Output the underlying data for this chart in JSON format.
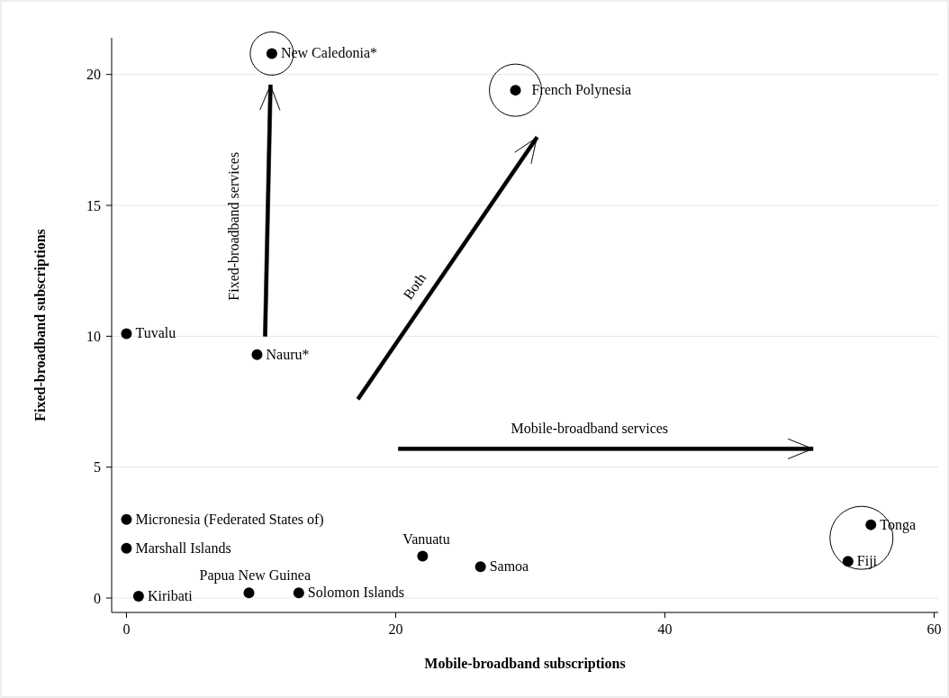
{
  "chart_data": {
    "type": "scatter",
    "xlabel": "Mobile-broadband subscriptions",
    "ylabel": "Fixed-broadband subscriptions",
    "x": [
      10.8,
      28.9,
      0,
      9.7,
      0,
      0,
      22.0,
      26.3,
      55.3,
      53.6,
      9.1,
      12.8,
      0.9
    ],
    "values": [
      20.8,
      19.4,
      10.1,
      9.3,
      3.0,
      1.9,
      1.6,
      1.2,
      2.8,
      1.4,
      0.2,
      0.2,
      0.07
    ],
    "color": "#000000",
    "marker": "circle",
    "grid": "y",
    "xlim": [
      -1.1,
      60.3
    ],
    "xticks": [
      0,
      20,
      40,
      60
    ],
    "ylim": [
      -0.55,
      21.4
    ],
    "yticks": [
      0,
      5,
      10,
      15,
      20
    ],
    "annotations": [
      {
        "text": "New Caledonia*",
        "x": 10.8,
        "y": 20.8
      },
      {
        "text": "French Polynesia",
        "x": 28.9,
        "y": 19.4
      },
      {
        "text": "Tuvalu",
        "x": 0,
        "y": 10.1
      },
      {
        "text": "Nauru*",
        "x": 9.7,
        "y": 9.3
      },
      {
        "text": "Micronesia (Federated States of)",
        "x": 0,
        "y": 3.0
      },
      {
        "text": "Marshall Islands",
        "x": 0,
        "y": 1.9
      },
      {
        "text": "Vanuatu",
        "x": 22.0,
        "y": 1.6
      },
      {
        "text": "Samoa",
        "x": 26.3,
        "y": 1.2
      },
      {
        "text": "Tonga",
        "x": 55.3,
        "y": 2.8
      },
      {
        "text": "Fiji",
        "x": 53.6,
        "y": 1.4
      },
      {
        "text": "Papua New Guinea",
        "x": 9.1,
        "y": 0.2
      },
      {
        "text": "Solomon Islands",
        "x": 12.8,
        "y": 0.2
      },
      {
        "text": "Kiribati",
        "x": 0.9,
        "y": 0.07
      },
      "Fixed-broadband services",
      "Both",
      "Mobile-broadband services"
    ]
  }
}
